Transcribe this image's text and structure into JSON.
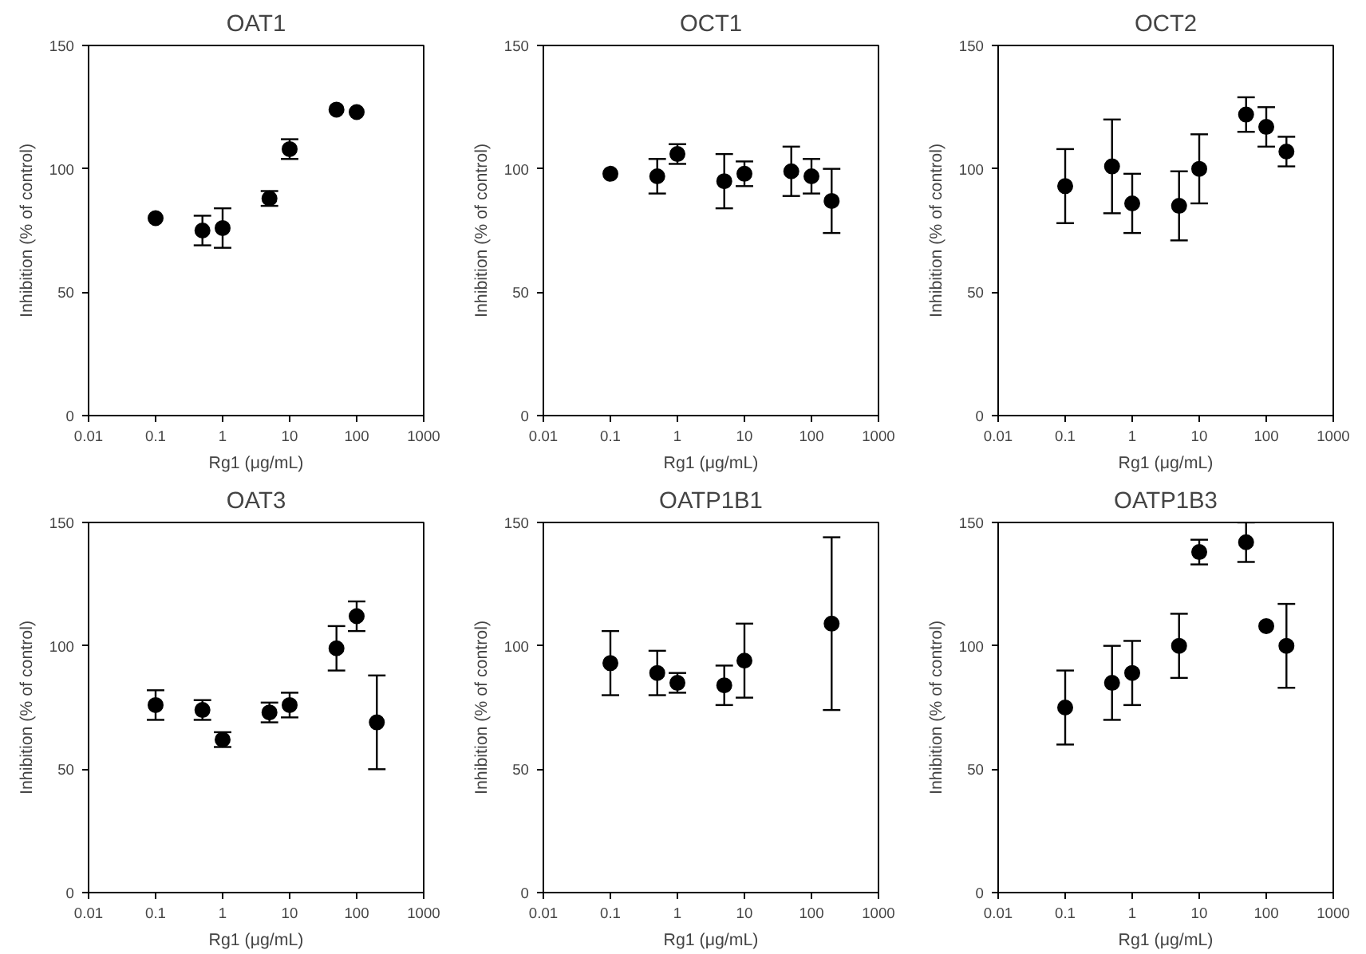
{
  "chart_data": [
    {
      "type": "scatter",
      "title": "OAT1",
      "xlabel": "Rg1 (μg/mL)",
      "ylabel": "Inhibition (% of control)",
      "log": "x",
      "grid": false,
      "marker": "circle",
      "xlim": [
        0.01,
        1000
      ],
      "ylim": [
        0,
        150
      ],
      "xticks": [
        0.01,
        0.1,
        1,
        10,
        100,
        1000
      ],
      "yticks": [
        0,
        50,
        100,
        150
      ],
      "x": [
        0.1,
        0.5,
        1,
        5,
        10,
        50,
        100
      ],
      "series": [
        {
          "color": "#000000",
          "values": [
            80,
            75,
            76,
            88,
            108,
            124,
            123
          ],
          "errors": [
            null,
            6,
            8,
            3,
            4,
            null,
            null
          ]
        }
      ]
    },
    {
      "type": "scatter",
      "title": "OCT1",
      "xlabel": "Rg1 (μg/mL)",
      "ylabel": "Inhibition (% of control)",
      "log": "x",
      "grid": false,
      "marker": "circle",
      "xlim": [
        0.01,
        1000
      ],
      "ylim": [
        0,
        150
      ],
      "xticks": [
        0.01,
        0.1,
        1,
        10,
        100,
        1000
      ],
      "yticks": [
        0,
        50,
        100,
        150
      ],
      "x": [
        0.1,
        0.5,
        1,
        5,
        10,
        50,
        100,
        200
      ],
      "series": [
        {
          "color": "#000000",
          "values": [
            98,
            97,
            106,
            95,
            98,
            99,
            97,
            87
          ],
          "errors": [
            null,
            7,
            4,
            11,
            5,
            10,
            7,
            13
          ]
        }
      ]
    },
    {
      "type": "scatter",
      "title": "OCT2",
      "xlabel": "Rg1 (μg/mL)",
      "ylabel": "Inhibition (% of control)",
      "log": "x",
      "grid": false,
      "marker": "circle",
      "xlim": [
        0.01,
        1000
      ],
      "ylim": [
        0,
        150
      ],
      "xticks": [
        0.01,
        0.1,
        1,
        10,
        100,
        1000
      ],
      "yticks": [
        0,
        50,
        100,
        150
      ],
      "x": [
        0.1,
        0.5,
        1,
        5,
        10,
        50,
        100,
        200
      ],
      "series": [
        {
          "color": "#000000",
          "values": [
            93,
            101,
            86,
            85,
            100,
            122,
            117,
            107
          ],
          "errors": [
            15,
            19,
            12,
            14,
            14,
            7,
            8,
            6
          ]
        }
      ]
    },
    {
      "type": "scatter",
      "title": "OAT3",
      "xlabel": "Rg1 (μg/mL)",
      "ylabel": "Inhibition (% of control)",
      "log": "x",
      "grid": false,
      "marker": "circle",
      "xlim": [
        0.01,
        1000
      ],
      "ylim": [
        0,
        150
      ],
      "xticks": [
        0.01,
        0.1,
        1,
        10,
        100,
        1000
      ],
      "yticks": [
        0,
        50,
        100,
        150
      ],
      "x": [
        0.1,
        0.5,
        1,
        5,
        10,
        50,
        100,
        200
      ],
      "series": [
        {
          "color": "#000000",
          "values": [
            76,
            74,
            62,
            73,
            76,
            99,
            112,
            69
          ],
          "errors": [
            6,
            4,
            3,
            4,
            5,
            9,
            6,
            19
          ]
        }
      ]
    },
    {
      "type": "scatter",
      "title": "OATP1B1",
      "xlabel": "Rg1 (μg/mL)",
      "ylabel": "Inhibition (% of control)",
      "log": "x",
      "grid": false,
      "marker": "circle",
      "xlim": [
        0.01,
        1000
      ],
      "ylim": [
        0,
        150
      ],
      "xticks": [
        0.01,
        0.1,
        1,
        10,
        100,
        1000
      ],
      "yticks": [
        0,
        50,
        100,
        150
      ],
      "x": [
        0.1,
        0.5,
        1,
        5,
        10,
        200
      ],
      "series": [
        {
          "color": "#000000",
          "values": [
            93,
            89,
            85,
            84,
            94,
            109
          ],
          "errors": [
            13,
            9,
            4,
            8,
            15,
            35
          ]
        }
      ]
    },
    {
      "type": "scatter",
      "title": "OATP1B3",
      "xlabel": "Rg1 (μg/mL)",
      "ylabel": "Inhibition (% of control)",
      "log": "x",
      "grid": false,
      "marker": "circle",
      "xlim": [
        0.01,
        1000
      ],
      "ylim": [
        0,
        150
      ],
      "xticks": [
        0.01,
        0.1,
        1,
        10,
        100,
        1000
      ],
      "yticks": [
        0,
        50,
        100,
        150
      ],
      "x": [
        0.1,
        0.5,
        1,
        5,
        10,
        50,
        100,
        200
      ],
      "series": [
        {
          "color": "#000000",
          "values": [
            75,
            85,
            89,
            100,
            138,
            142,
            108,
            100
          ],
          "errors": [
            15,
            15,
            13,
            13,
            5,
            8,
            null,
            17
          ]
        }
      ]
    }
  ]
}
